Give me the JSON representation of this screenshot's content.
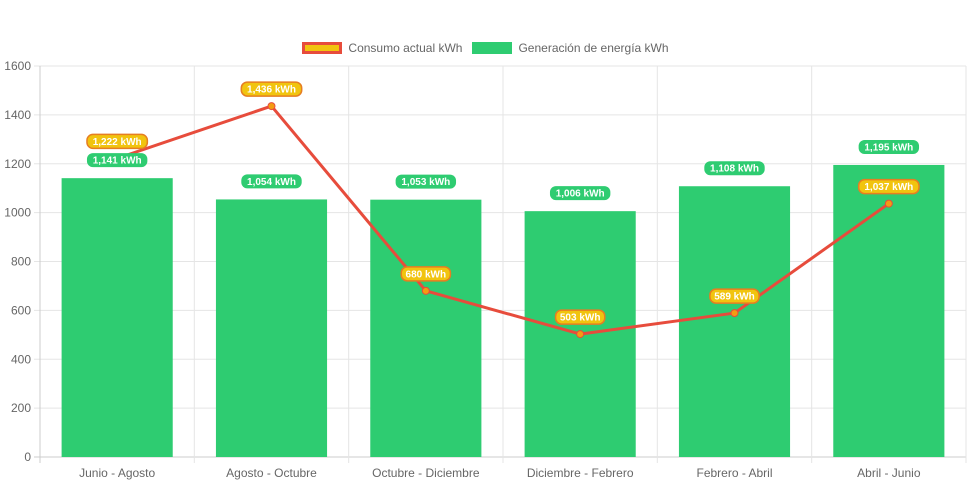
{
  "chart_data": {
    "type": "bar",
    "categories": [
      "Junio - Agosto",
      "Agosto - Octubre",
      "Octubre - Diciembre",
      "Diciembre - Febrero",
      "Febrero - Abril",
      "Abril - Junio"
    ],
    "series": [
      {
        "name": "Consumo actual kWh",
        "type": "line",
        "values": [
          1222,
          1436,
          680,
          503,
          589,
          1037
        ],
        "labels": [
          "1,222 kWh",
          "1,436 kWh",
          "680 kWh",
          "503 kWh",
          "589 kWh",
          "1,037 kWh"
        ],
        "color": "#e74c3c",
        "fill": "#f1c40f"
      },
      {
        "name": "Generación de energía kWh",
        "type": "bar",
        "values": [
          1141,
          1054,
          1053,
          1006,
          1108,
          1195
        ],
        "labels": [
          "1,141 kWh",
          "1,054 kWh",
          "1,053 kWh",
          "1,006 kWh",
          "1,108 kWh",
          "1,195 kWh"
        ],
        "color": "#2ecc71"
      }
    ],
    "ylim": [
      0,
      1600
    ],
    "yticks": [
      "0",
      "200",
      "400",
      "600",
      "800",
      "1000",
      "1200",
      "1400",
      "1600"
    ],
    "grid": true,
    "legend_position": "top"
  }
}
